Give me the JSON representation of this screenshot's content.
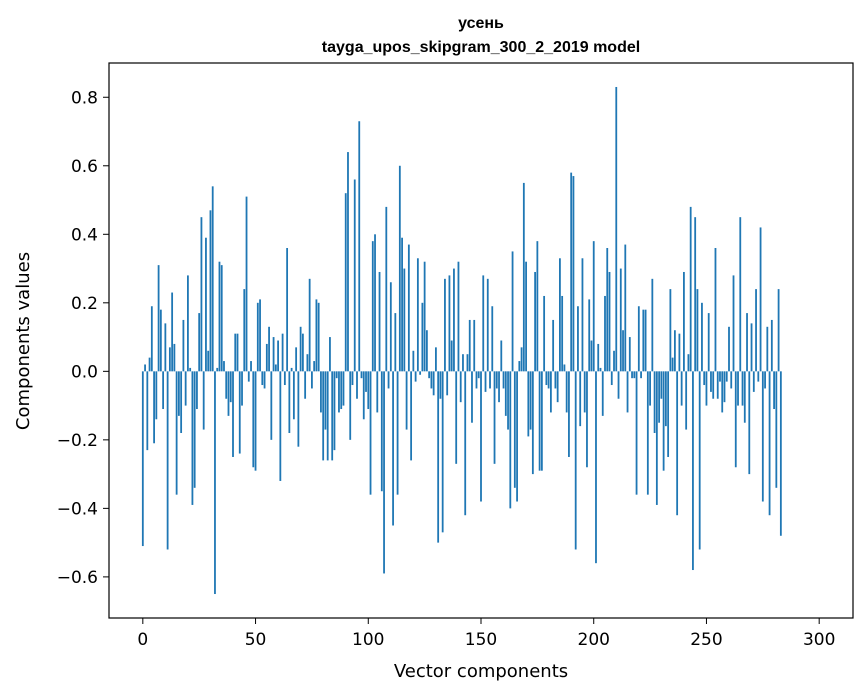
{
  "chart_data": {
    "type": "bar",
    "title": "усень",
    "subtitle": "tayga_upos_skipgram_300_2_2019 model",
    "xlabel": "Vector components",
    "ylabel": "Components values",
    "xlim": [
      -15,
      315
    ],
    "ylim": [
      -0.72,
      0.9
    ],
    "xticks": [
      0,
      50,
      100,
      150,
      200,
      250,
      300
    ],
    "yticks": [
      -0.6,
      -0.4,
      -0.2,
      0.0,
      0.2,
      0.4,
      0.6,
      0.8
    ],
    "ytick_labels": [
      "−0.6",
      "−0.4",
      "−0.2",
      "0.0",
      "0.2",
      "0.4",
      "0.6",
      "0.8"
    ],
    "grid": false,
    "color": "#1f77b4",
    "values": [
      -0.51,
      0.02,
      -0.23,
      0.04,
      0.19,
      -0.21,
      -0.14,
      0.31,
      0.18,
      -0.11,
      0.14,
      -0.52,
      0.07,
      0.23,
      0.08,
      -0.36,
      -0.13,
      -0.18,
      0.15,
      -0.1,
      0.28,
      0.01,
      -0.39,
      -0.34,
      -0.11,
      0.17,
      0.45,
      -0.17,
      0.39,
      0.06,
      0.47,
      0.54,
      -0.65,
      0.01,
      0.32,
      0.31,
      0.03,
      -0.08,
      -0.13,
      -0.09,
      -0.25,
      0.11,
      0.11,
      -0.24,
      -0.1,
      0.24,
      0.51,
      -0.03,
      0.03,
      -0.28,
      -0.29,
      0.2,
      0.21,
      -0.04,
      -0.05,
      0.08,
      0.13,
      -0.2,
      0.1,
      0.02,
      0.09,
      -0.32,
      0.11,
      -0.04,
      0.36,
      -0.18,
      0.01,
      -0.14,
      0.07,
      -0.22,
      0.13,
      0.11,
      -0.08,
      0.05,
      0.27,
      -0.05,
      0.03,
      0.21,
      0.2,
      -0.12,
      -0.26,
      -0.17,
      -0.26,
      0.1,
      -0.26,
      -0.23,
      -0.02,
      -0.12,
      -0.11,
      -0.1,
      0.52,
      0.64,
      -0.2,
      -0.04,
      0.56,
      -0.08,
      0.73,
      -0.02,
      -0.14,
      -0.06,
      -0.11,
      -0.36,
      0.38,
      0.4,
      -0.12,
      0.29,
      -0.35,
      -0.59,
      0.48,
      -0.05,
      0.26,
      -0.45,
      0.17,
      -0.36,
      0.6,
      0.39,
      0.3,
      -0.17,
      0.37,
      -0.26,
      0.06,
      -0.03,
      0.33,
      -0.01,
      0.2,
      0.32,
      0.12,
      -0.02,
      -0.05,
      -0.07,
      0.07,
      -0.5,
      -0.08,
      -0.47,
      0.27,
      -0.07,
      0.28,
      0.09,
      0.3,
      -0.27,
      0.32,
      -0.09,
      0.05,
      -0.42,
      0.05,
      0.15,
      -0.15,
      0.15,
      -0.05,
      -0.02,
      -0.38,
      0.28,
      -0.06,
      0.27,
      -0.05,
      0.19,
      -0.27,
      -0.05,
      -0.09,
      0.09,
      -0.05,
      -0.13,
      -0.17,
      -0.4,
      0.35,
      -0.34,
      -0.38,
      0.03,
      0.07,
      0.55,
      0.32,
      -0.19,
      -0.17,
      -0.3,
      0.29,
      0.38,
      -0.29,
      -0.29,
      0.22,
      -0.04,
      -0.05,
      -0.12,
      0.15,
      -0.05,
      -0.09,
      0.33,
      0.22,
      0.02,
      -0.12,
      -0.25,
      0.58,
      0.57,
      -0.52,
      0.19,
      -0.16,
      0.33,
      -0.12,
      -0.28,
      0.21,
      0.09,
      0.38,
      -0.56,
      0.08,
      0.01,
      -0.13,
      0.22,
      0.36,
      0.29,
      -0.04,
      0.06,
      0.83,
      -0.08,
      0.3,
      0.12,
      0.37,
      -0.12,
      0.1,
      -0.02,
      -0.02,
      -0.36,
      0.19,
      -0.02,
      0.18,
      0.18,
      -0.36,
      -0.1,
      0.27,
      -0.18,
      -0.39,
      -0.15,
      -0.08,
      -0.29,
      -0.16,
      -0.25,
      0.24,
      0.04,
      0.12,
      -0.42,
      0.11,
      -0.1,
      0.29,
      -0.17,
      0.05,
      0.48,
      -0.58,
      0.45,
      0.24,
      -0.52,
      0.2,
      -0.04,
      -0.1,
      0.17,
      -0.06,
      -0.08,
      0.36,
      -0.08,
      -0.03,
      -0.12,
      -0.09,
      -0.03,
      0.13,
      -0.05,
      0.28,
      -0.28,
      -0.1,
      0.45,
      -0.1,
      -0.15,
      0.17,
      -0.3,
      0.14,
      -0.06,
      0.24,
      -0.03,
      0.42,
      -0.38,
      -0.05,
      0.13,
      -0.42,
      0.15,
      -0.11,
      -0.34,
      0.24,
      -0.48
    ]
  }
}
